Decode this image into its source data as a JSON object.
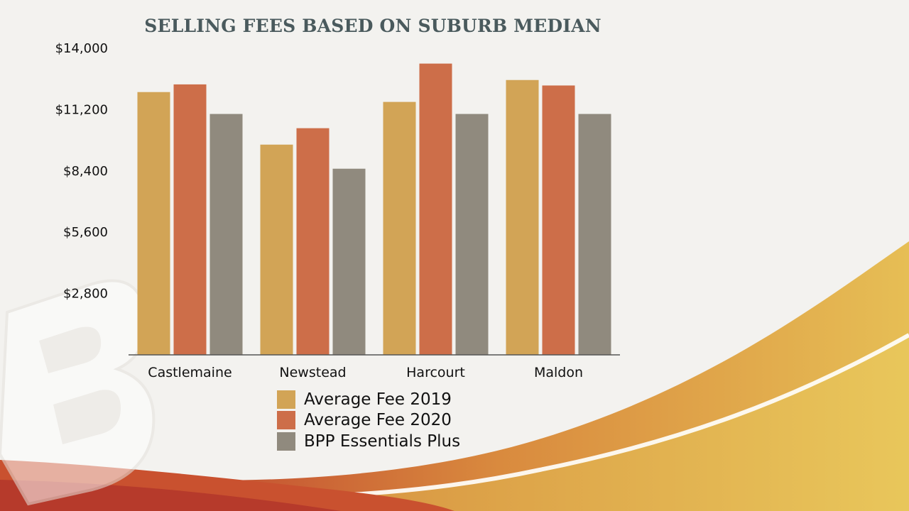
{
  "chart_data": {
    "type": "bar",
    "title": "SELLING FEES BASED ON SUBURB MEDIAN",
    "categories": [
      "Castlemaine",
      "Newstead",
      "Harcourt",
      "Maldon"
    ],
    "series": [
      {
        "name": "Average Fee 2019",
        "color": "#d2a456",
        "values": [
          12000,
          9600,
          11550,
          12550
        ]
      },
      {
        "name": "Average Fee 2020",
        "color": "#cd6e49",
        "values": [
          12350,
          10350,
          13300,
          12300
        ]
      },
      {
        "name": "BPP Essentials Plus",
        "color": "#908a7e",
        "values": [
          11000,
          8500,
          11000,
          11000
        ]
      }
    ],
    "yticks": [
      2800,
      5600,
      8400,
      11200,
      14000
    ],
    "ytick_labels": [
      "$2,800",
      "$5,600",
      "$8,400",
      "$11,200",
      "$14,000"
    ],
    "ylim": [
      0,
      14000
    ],
    "grid": false,
    "legend_position": "bottom"
  }
}
